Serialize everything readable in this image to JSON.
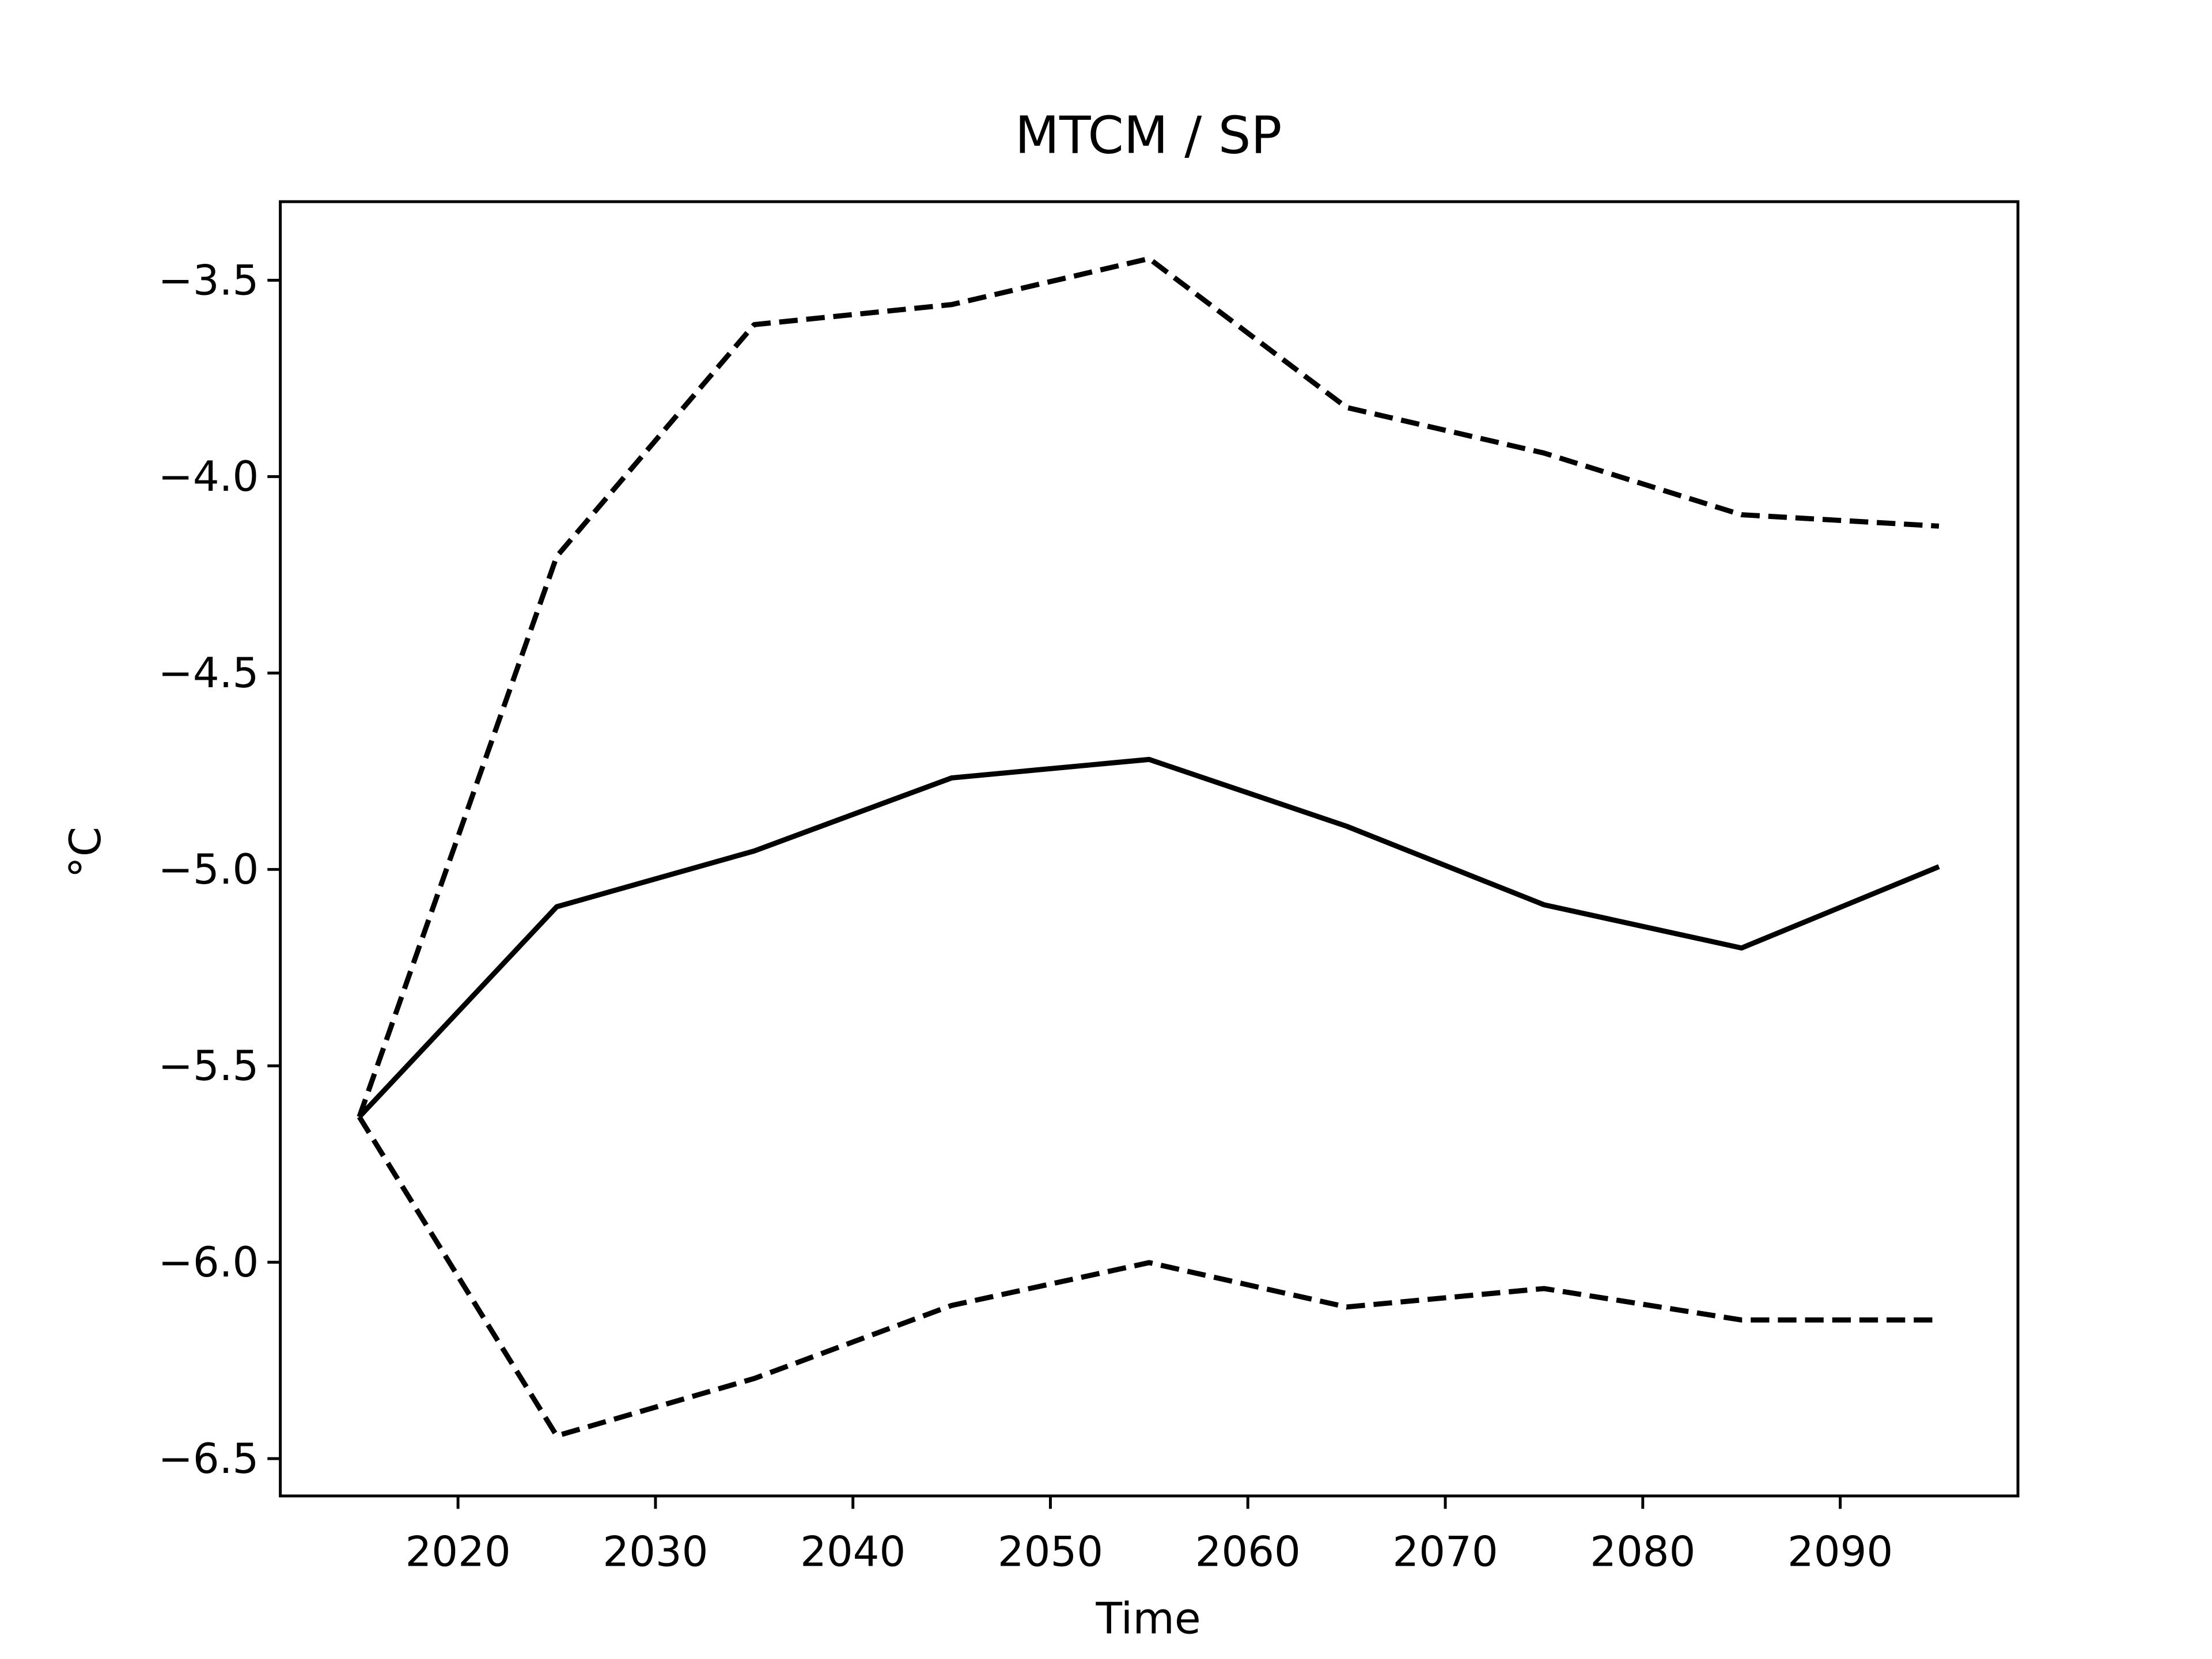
{
  "chart_data": {
    "type": "line",
    "title": "MTCM / SP",
    "x_label": "Time",
    "y_label": "°C",
    "x": [
      2015,
      2025,
      2035,
      2045,
      2055,
      2065,
      2075,
      2085,
      2095
    ],
    "series": [
      {
        "color": "#000000",
        "linestyle": "solid",
        "values": [
          -5.63,
          -5.095,
          -4.953,
          -4.767,
          -4.72,
          -4.89,
          -5.09,
          -5.2,
          -4.993
        ]
      },
      {
        "color": "#000000",
        "linestyle": "dashed",
        "values": [
          -5.63,
          -4.203,
          -3.613,
          -3.562,
          -3.445,
          -3.824,
          -3.94,
          -4.097,
          -4.126
        ]
      },
      {
        "color": "#000000",
        "linestyle": "dashed",
        "values": [
          -5.63,
          -6.442,
          -6.296,
          -6.11,
          -6.001,
          -6.114,
          -6.067,
          -6.147,
          -6.147
        ]
      }
    ],
    "xlim": [
      2011,
      2099
    ],
    "xticks": [
      2020,
      2030,
      2040,
      2050,
      2060,
      2070,
      2080,
      2090
    ],
    "ylim": [
      -6.595,
      -3.3
    ],
    "yticks": [
      {
        "value": -6.5,
        "label": "−6.5"
      },
      {
        "value": -6.0,
        "label": "−6.0"
      },
      {
        "value": -5.5,
        "label": "−5.5"
      },
      {
        "value": -5.0,
        "label": "−5.0"
      },
      {
        "value": -4.5,
        "label": "−4.5"
      },
      {
        "value": -4.0,
        "label": "−4.0"
      },
      {
        "value": -3.5,
        "label": "−3.5"
      }
    ],
    "grid": false
  }
}
